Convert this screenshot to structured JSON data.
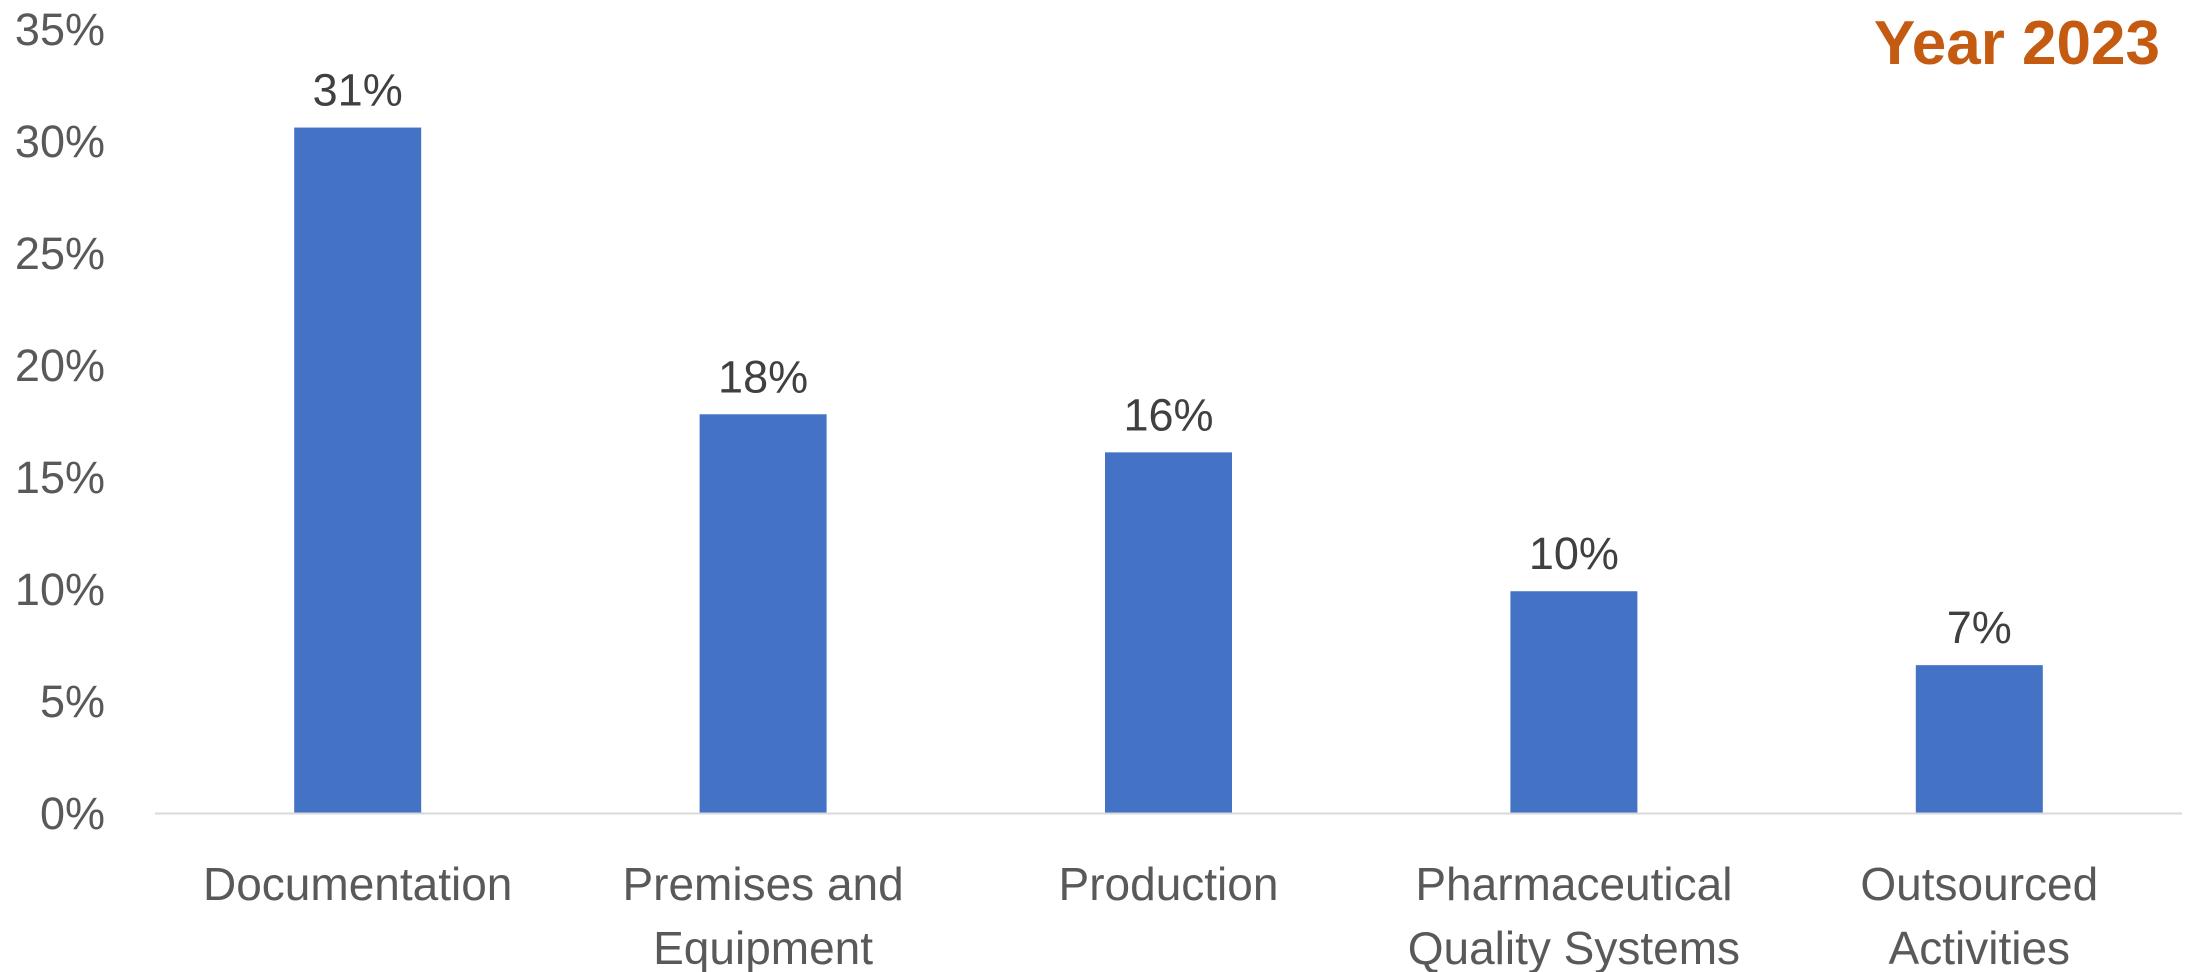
{
  "chart_data": {
    "type": "bar",
    "title": "Year 2023",
    "categories": [
      [
        "Documentation"
      ],
      [
        "Premises and",
        "Equipment"
      ],
      [
        "Production"
      ],
      [
        "Pharmaceutical",
        "Quality Systems"
      ],
      [
        "Outsourced",
        "Activities"
      ]
    ],
    "values": [
      30.6,
      17.8,
      16.1,
      9.9,
      6.6
    ],
    "data_labels": [
      "31%",
      "18%",
      "16%",
      "10%",
      "7%"
    ],
    "y_ticks": [
      0,
      5,
      10,
      15,
      20,
      25,
      30,
      35
    ],
    "y_tick_labels": [
      "0%",
      "5%",
      "10%",
      "15%",
      "20%",
      "25%",
      "30%",
      "35%"
    ],
    "ylim": [
      0,
      35
    ],
    "xlabel": "",
    "ylabel": "",
    "grid": false,
    "legend": "none",
    "colors": {
      "bar": "#4472C4",
      "title": "#C55A11",
      "axis_line": "#D9D9D9"
    }
  }
}
